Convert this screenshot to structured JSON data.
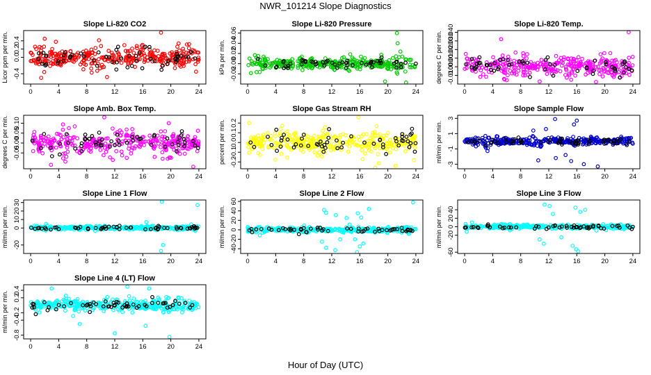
{
  "figure": {
    "title": "NWR_101214  Slope Diagnostics",
    "xlabel": "Hour of Day (UTC)"
  },
  "chart_data": [
    {
      "type": "scatter",
      "title": "Slope Li-820 CO2",
      "ylabel": "Licor ppm per min.",
      "color": "#ff0000",
      "xlim": [
        -1,
        25
      ],
      "ylim": [
        -0.65,
        0.65
      ],
      "xticks": [
        0,
        4,
        8,
        12,
        16,
        20,
        24
      ],
      "yticks": [
        -0.4,
        0.0,
        0.2,
        0.4
      ],
      "ytick_labels": [
        "-0.4",
        "0.0",
        "0.2",
        "0.4"
      ],
      "core_spread": 0.16,
      "outliers": [
        [
          2.0,
          0.45
        ],
        [
          18.6,
          0.6
        ],
        [
          10.9,
          -0.48
        ],
        [
          1.5,
          -0.5
        ],
        [
          23.6,
          -0.35
        ]
      ]
    },
    {
      "type": "scatter",
      "title": "Slope Li-820 Pressure",
      "ylabel": "kPa per min.",
      "color": "#00cc00",
      "xlim": [
        -1,
        25
      ],
      "ylim": [
        -0.04,
        0.065
      ],
      "xticks": [
        0,
        4,
        8,
        12,
        16,
        20,
        24
      ],
      "yticks": [
        -0.02,
        0.0,
        0.02,
        0.04,
        0.06
      ],
      "ytick_labels": [
        "-0.02",
        "0.00",
        "0.02",
        "0.04",
        "0.06"
      ],
      "core_spread": 0.008,
      "outliers": [
        [
          21.3,
          0.06
        ],
        [
          19.6,
          -0.035
        ],
        [
          22.6,
          -0.037
        ],
        [
          21.4,
          0.04
        ]
      ]
    },
    {
      "type": "scatter",
      "title": "Slope Li-820 Temp.",
      "ylabel": "degrees C per min.",
      "color": "#ff00ff",
      "xlim": [
        -1,
        25
      ],
      "ylim": [
        -0.02,
        0.042
      ],
      "xticks": [
        0,
        4,
        8,
        12,
        16,
        20,
        24
      ],
      "yticks": [
        -0.01,
        0.0,
        0.01,
        0.02,
        0.03,
        0.04
      ],
      "ytick_labels": [
        "-0.010",
        "0.000",
        "0.010",
        "0.020",
        "0.030",
        "0.040"
      ],
      "core_spread": 0.008,
      "outliers": [
        [
          23.4,
          0.04
        ],
        [
          10.7,
          -0.017
        ],
        [
          15.2,
          -0.015
        ],
        [
          5.2,
          0.032
        ]
      ]
    },
    {
      "type": "scatter",
      "title": "Slope Amb. Box Temp.",
      "ylabel": "degrees C per min.",
      "color": "#ff00ff",
      "xlim": [
        -1,
        25
      ],
      "ylim": [
        -0.13,
        0.14
      ],
      "xticks": [
        0,
        4,
        8,
        12,
        16,
        20,
        24
      ],
      "yticks": [
        -0.05,
        0.0,
        0.05,
        0.1
      ],
      "ytick_labels": [
        "-0.05",
        "0.00",
        "0.05",
        "0.10"
      ],
      "core_spread": 0.04,
      "outliers": [
        [
          10.5,
          0.13
        ],
        [
          23.2,
          -0.12
        ],
        [
          2.9,
          -0.11
        ],
        [
          19.7,
          0.1
        ]
      ]
    },
    {
      "type": "scatter",
      "title": "Slope Gas Stream RH",
      "ylabel": "percent per min.",
      "color": "#ffff00",
      "xlim": [
        -1,
        25
      ],
      "ylim": [
        -0.27,
        0.28
      ],
      "xticks": [
        0,
        4,
        8,
        12,
        16,
        20,
        24
      ],
      "yticks": [
        -0.2,
        -0.1,
        0.0,
        0.1,
        0.2
      ],
      "ytick_labels": [
        "-0.2",
        "-0.1",
        "0.0",
        "0.1",
        "0.2"
      ],
      "core_spread": 0.08,
      "outliers": [
        [
          15.8,
          0.26
        ],
        [
          21.1,
          -0.24
        ],
        [
          18.2,
          -0.26
        ],
        [
          0.2,
          0.2
        ]
      ]
    },
    {
      "type": "scatter",
      "title": "Slope Sample Flow",
      "ylabel": "ml/min per min.",
      "color": "#0000cc",
      "xlim": [
        -1,
        25
      ],
      "ylim": [
        -3.6,
        3.4
      ],
      "xticks": [
        0,
        4,
        8,
        12,
        16,
        20,
        24
      ],
      "yticks": [
        -3,
        -1,
        1,
        3
      ],
      "ytick_labels": [
        "-3",
        "-1",
        "1",
        "3"
      ],
      "core_spread": 0.35,
      "outliers": [
        [
          12.9,
          2.9
        ],
        [
          15.6,
          2.2
        ],
        [
          16.0,
          2.7
        ],
        [
          15.2,
          -2.6
        ],
        [
          17.0,
          -3.0
        ],
        [
          13.0,
          -2.2
        ],
        [
          10.5,
          -2.5
        ],
        [
          14.4,
          -1.8
        ],
        [
          19.0,
          -3.3
        ],
        [
          11.6,
          1.6
        ],
        [
          9.8,
          1.4
        ]
      ]
    },
    {
      "type": "scatter",
      "title": "Slope Line 1 Flow",
      "ylabel": "ml/min per min.",
      "color": "#00ffff",
      "xlim": [
        -1,
        25
      ],
      "ylim": [
        -30,
        33
      ],
      "xticks": [
        0,
        4,
        8,
        12,
        16,
        20,
        24
      ],
      "yticks": [
        -20,
        0,
        10,
        20,
        30
      ],
      "ytick_labels": [
        "-20",
        "0",
        "10",
        "20",
        "30"
      ],
      "core_spread": 1.5,
      "outliers": [
        [
          18.7,
          31
        ],
        [
          18.6,
          -27
        ],
        [
          23.8,
          27
        ],
        [
          18.9,
          -20
        ],
        [
          16.5,
          7
        ]
      ]
    },
    {
      "type": "scatter",
      "title": "Slope Line 2 Flow",
      "ylabel": "ml/min per min.",
      "color": "#00ffff",
      "xlim": [
        -1,
        25
      ],
      "ylim": [
        -50,
        63
      ],
      "xticks": [
        0,
        4,
        8,
        12,
        16,
        20,
        24
      ],
      "yticks": [
        -40,
        -20,
        0,
        20,
        40,
        60
      ],
      "ytick_labels": [
        "-40",
        "-20",
        "0",
        "20",
        "40",
        "60"
      ],
      "core_spread": 3.5,
      "outliers": [
        [
          10.9,
          42
        ],
        [
          11.2,
          36
        ],
        [
          12.6,
          31
        ],
        [
          15.7,
          35
        ],
        [
          16.2,
          26
        ],
        [
          17.3,
          44
        ],
        [
          10.6,
          -25
        ],
        [
          11.2,
          -38
        ],
        [
          12.5,
          -43
        ],
        [
          15.6,
          -47
        ],
        [
          16.0,
          -35
        ],
        [
          16.5,
          -29
        ],
        [
          23.6,
          58
        ],
        [
          14.1,
          25
        ],
        [
          13.2,
          -20
        ],
        [
          15.3,
          -20
        ]
      ]
    },
    {
      "type": "scatter",
      "title": "Slope Line 3 Flow",
      "ylabel": "ml/min per min.",
      "color": "#00ffff",
      "xlim": [
        -1,
        25
      ],
      "ylim": [
        -63,
        63
      ],
      "xticks": [
        0,
        4,
        8,
        12,
        16,
        20,
        24
      ],
      "yticks": [
        -60,
        -20,
        0,
        20,
        40
      ],
      "ytick_labels": [
        "-60",
        "-20",
        "0",
        "20",
        "40"
      ],
      "core_spread": 3.5,
      "outliers": [
        [
          11.4,
          52
        ],
        [
          12.1,
          49
        ],
        [
          15.8,
          45
        ],
        [
          16.5,
          35
        ],
        [
          17.2,
          40
        ],
        [
          10.7,
          -30
        ],
        [
          11.3,
          -40
        ],
        [
          15.4,
          -45
        ],
        [
          15.9,
          -53
        ],
        [
          16.2,
          -58
        ],
        [
          12.6,
          30
        ],
        [
          13.8,
          -25
        ],
        [
          0.3,
          -12
        ]
      ]
    },
    {
      "type": "scatter",
      "title": "Slope Line 4 (LT) Flow",
      "ylabel": "ml/min per min.",
      "color": "#00ffff",
      "xlim": [
        -1,
        25
      ],
      "ylim": [
        -0.9,
        0.55
      ],
      "xticks": [
        0,
        4,
        8,
        12,
        16,
        20,
        24
      ],
      "yticks": [
        -0.8,
        -0.4,
        -0.2,
        0.2,
        0.4
      ],
      "ytick_labels": [
        "-0.8",
        "-0.4",
        "-0.2",
        "0.2",
        "0.4"
      ],
      "core_spread": 0.11,
      "outliers": [
        [
          12.0,
          -0.75
        ],
        [
          19.8,
          -0.85
        ],
        [
          16.4,
          -0.55
        ],
        [
          3.0,
          0.45
        ],
        [
          13.8,
          0.5
        ],
        [
          16.9,
          0.45
        ],
        [
          7.0,
          -0.5
        ]
      ]
    }
  ]
}
